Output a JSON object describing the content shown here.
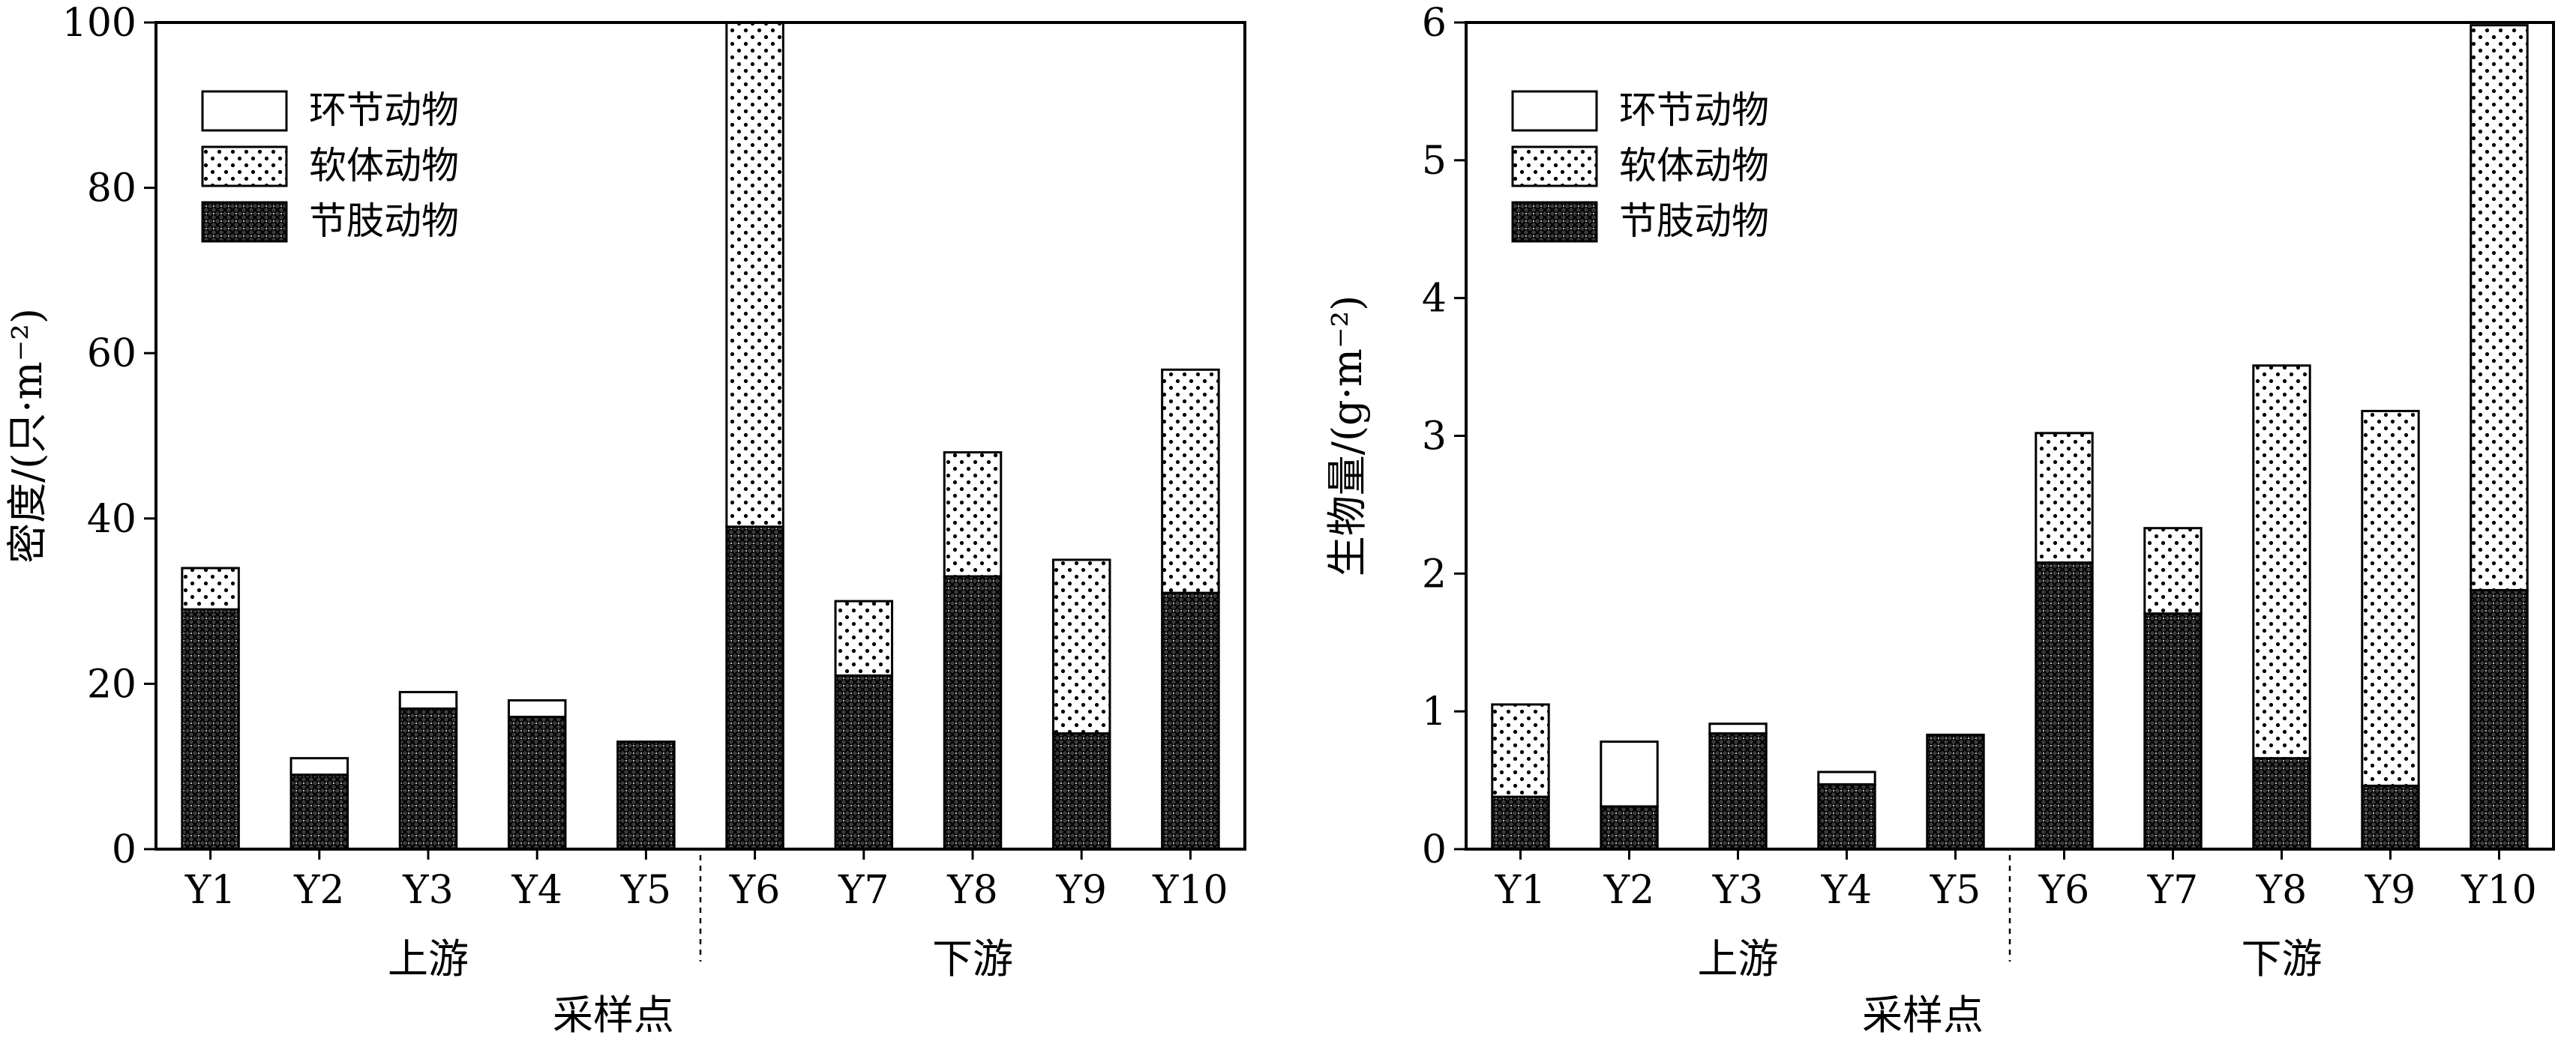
{
  "chart_data": [
    {
      "type": "bar",
      "stacked": true,
      "categories": [
        "Y1",
        "Y2",
        "Y3",
        "Y4",
        "Y5",
        "Y6",
        "Y7",
        "Y8",
        "Y9",
        "Y10"
      ],
      "series": [
        {
          "name": "节肢动物",
          "pattern": "dense-crosshatch",
          "values": [
            29,
            9,
            17,
            16,
            13,
            39,
            21,
            33,
            14,
            31
          ]
        },
        {
          "name": "软体动物",
          "pattern": "dots",
          "values": [
            5,
            0,
            0,
            0,
            0,
            61,
            9,
            15,
            21,
            27
          ]
        },
        {
          "name": "环节动物",
          "pattern": "white",
          "values": [
            0,
            2,
            2,
            2,
            0,
            0,
            0,
            0,
            0,
            0
          ]
        }
      ],
      "legend_order": [
        "环节动物",
        "软体动物",
        "节肢动物"
      ],
      "xlabel": "采样点",
      "ylabel": "密度/(只·m⁻²)",
      "ylim": [
        0,
        100
      ],
      "yticks": [
        0,
        20,
        40,
        60,
        80,
        100
      ],
      "groups": [
        {
          "label": "上游",
          "from": 0,
          "to": 4
        },
        {
          "label": "下游",
          "from": 5,
          "to": 9
        }
      ],
      "legend_position": "top-left",
      "grid": false
    },
    {
      "type": "bar",
      "stacked": true,
      "categories": [
        "Y1",
        "Y2",
        "Y3",
        "Y4",
        "Y5",
        "Y6",
        "Y7",
        "Y8",
        "Y9",
        "Y10"
      ],
      "series": [
        {
          "name": "节肢动物",
          "pattern": "dense-crosshatch",
          "values": [
            0.38,
            0.31,
            0.84,
            0.47,
            0.83,
            2.08,
            1.71,
            0.66,
            0.46,
            1.88
          ]
        },
        {
          "name": "软体动物",
          "pattern": "dots",
          "values": [
            0.67,
            0,
            0,
            0,
            0,
            0.94,
            0.62,
            2.85,
            2.72,
            4.1
          ]
        },
        {
          "name": "环节动物",
          "pattern": "white",
          "values": [
            0,
            0.47,
            0.07,
            0.09,
            0,
            0,
            0,
            0,
            0,
            0
          ]
        }
      ],
      "legend_order": [
        "环节动物",
        "软体动物",
        "节肢动物"
      ],
      "xlabel": "采样点",
      "ylabel": "生物量/(g·m⁻²)",
      "ylim": [
        0,
        6
      ],
      "yticks": [
        0,
        1,
        2,
        3,
        4,
        5,
        6
      ],
      "groups": [
        {
          "label": "上游",
          "from": 0,
          "to": 4
        },
        {
          "label": "下游",
          "from": 5,
          "to": 9
        }
      ],
      "legend_position": "top-left",
      "grid": false
    }
  ]
}
